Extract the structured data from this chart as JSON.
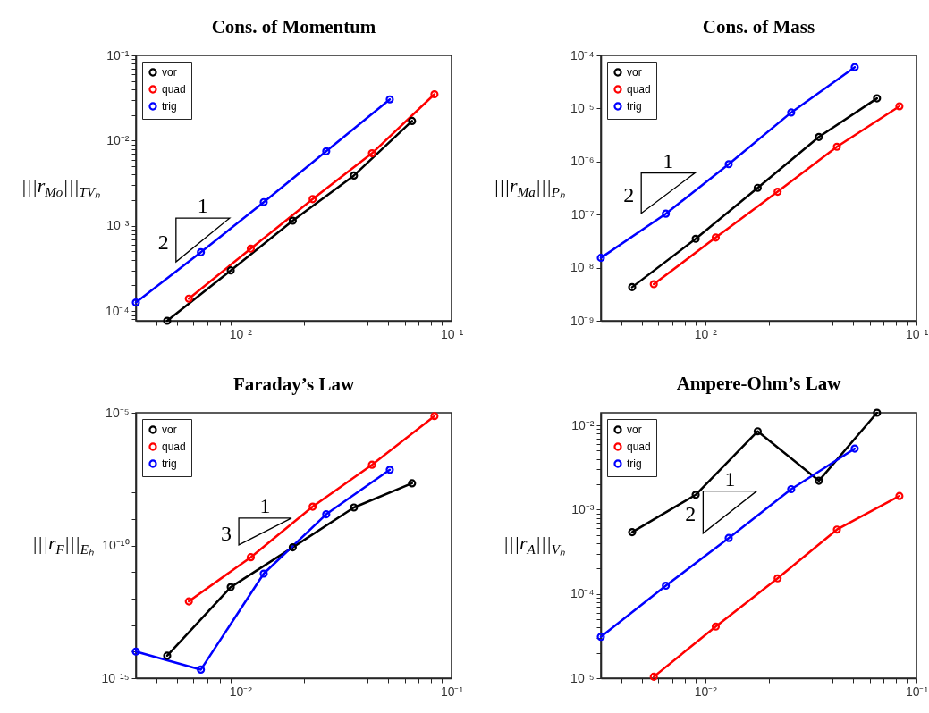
{
  "chart_data": [
    {
      "type": "line",
      "title": "Cons. of Momentum",
      "ylabel": "|||r$_{Mo}$|||$_{TVₕ}$",
      "log": "xy",
      "marker": "circle",
      "line_style": "solid",
      "legend": "top left",
      "annotations": [
        "1",
        "2"
      ],
      "xlim": [
        0.0032,
        0.1
      ],
      "xticks": [
        {
          "value": 0.004,
          "label": null
        },
        {
          "value": 0.005,
          "label": null
        },
        {
          "value": 0.006,
          "label": null
        },
        {
          "value": 0.007,
          "label": null
        },
        {
          "value": 0.008,
          "label": null
        },
        {
          "value": 0.009,
          "label": null
        },
        {
          "value": 0.01,
          "label": "10⁻²"
        },
        {
          "value": 0.02,
          "label": null
        },
        {
          "value": 0.03,
          "label": null
        },
        {
          "value": 0.04,
          "label": null
        },
        {
          "value": 0.05,
          "label": null
        },
        {
          "value": 0.06,
          "label": null
        },
        {
          "value": 0.07,
          "label": null
        },
        {
          "value": 0.08,
          "label": null
        },
        {
          "value": 0.09,
          "label": null
        },
        {
          "value": 0.1,
          "label": "10⁻¹"
        }
      ],
      "ylim": [
        7.7e-05,
        0.1
      ],
      "yticks": [
        {
          "value": 8e-05,
          "label": null
        },
        {
          "value": 9e-05,
          "label": null
        },
        {
          "value": 0.0001,
          "label": "10⁻⁴"
        },
        {
          "value": 0.0002,
          "label": null
        },
        {
          "value": 0.0003,
          "label": null
        },
        {
          "value": 0.0004,
          "label": null
        },
        {
          "value": 0.0005,
          "label": null
        },
        {
          "value": 0.0006,
          "label": null
        },
        {
          "value": 0.0007,
          "label": null
        },
        {
          "value": 0.0008,
          "label": null
        },
        {
          "value": 0.0009,
          "label": null
        },
        {
          "value": 0.001,
          "label": "10⁻³"
        },
        {
          "value": 0.002,
          "label": null
        },
        {
          "value": 0.003,
          "label": null
        },
        {
          "value": 0.004,
          "label": null
        },
        {
          "value": 0.005,
          "label": null
        },
        {
          "value": 0.006,
          "label": null
        },
        {
          "value": 0.007,
          "label": null
        },
        {
          "value": 0.008,
          "label": null
        },
        {
          "value": 0.009,
          "label": null
        },
        {
          "value": 0.01,
          "label": "10⁻²"
        },
        {
          "value": 0.02,
          "label": null
        },
        {
          "value": 0.03,
          "label": null
        },
        {
          "value": 0.04,
          "label": null
        },
        {
          "value": 0.05,
          "label": null
        },
        {
          "value": 0.06,
          "label": null
        },
        {
          "value": 0.07,
          "label": null
        },
        {
          "value": 0.08,
          "label": null
        },
        {
          "value": 0.09,
          "label": null
        },
        {
          "value": 0.1,
          "label": "10⁻¹"
        }
      ],
      "series": [
        {
          "name": "vor",
          "color": "#000000",
          "x": [
            0.0045,
            0.009,
            0.0177,
            0.0345,
            0.065
          ],
          "values": [
            7.7e-05,
            0.0003,
            0.00115,
            0.0039,
            0.017
          ]
        },
        {
          "name": "quad",
          "color": "#ff0000",
          "x": [
            0.0057,
            0.0112,
            0.022,
            0.042,
            0.083
          ],
          "values": [
            0.00014,
            0.00054,
            0.00206,
            0.0071,
            0.035
          ]
        },
        {
          "name": "trig",
          "color": "#0000ff",
          "x": [
            0.0032,
            0.0065,
            0.0129,
            0.0255,
            0.051
          ],
          "values": [
            0.000126,
            0.00049,
            0.0019,
            0.0075,
            0.0305
          ]
        }
      ]
    },
    {
      "type": "line",
      "title": "Cons. of Mass",
      "ylabel": "|||r$_{Ma}$|||$_{Pₕ}$",
      "log": "xy",
      "marker": "circle",
      "line_style": "solid",
      "legend": "top left",
      "annotations": [
        "1",
        "2"
      ],
      "xlim": [
        0.0032,
        0.1
      ],
      "xticks": [
        {
          "value": 0.004,
          "label": null
        },
        {
          "value": 0.005,
          "label": null
        },
        {
          "value": 0.006,
          "label": null
        },
        {
          "value": 0.007,
          "label": null
        },
        {
          "value": 0.008,
          "label": null
        },
        {
          "value": 0.009,
          "label": null
        },
        {
          "value": 0.01,
          "label": "10⁻²"
        },
        {
          "value": 0.02,
          "label": null
        },
        {
          "value": 0.03,
          "label": null
        },
        {
          "value": 0.04,
          "label": null
        },
        {
          "value": 0.05,
          "label": null
        },
        {
          "value": 0.06,
          "label": null
        },
        {
          "value": 0.07,
          "label": null
        },
        {
          "value": 0.08,
          "label": null
        },
        {
          "value": 0.09,
          "label": null
        },
        {
          "value": 0.1,
          "label": "10⁻¹"
        }
      ],
      "ylim": [
        1e-09,
        0.0001
      ],
      "yticks": [
        {
          "value": 1e-09,
          "label": "10⁻⁹"
        },
        {
          "value": 1e-08,
          "label": "10⁻⁸"
        },
        {
          "value": 1e-07,
          "label": "10⁻⁷"
        },
        {
          "value": 1e-06,
          "label": "10⁻⁶"
        },
        {
          "value": 1e-05,
          "label": "10⁻⁵"
        },
        {
          "value": 0.0001,
          "label": "10⁻⁴"
        }
      ],
      "series": [
        {
          "name": "vor",
          "color": "#000000",
          "x": [
            0.0045,
            0.009,
            0.0177,
            0.0345,
            0.065
          ],
          "values": [
            4.3e-09,
            3.5e-08,
            3.2e-07,
            2.9e-06,
            1.55e-05
          ]
        },
        {
          "name": "quad",
          "color": "#ff0000",
          "x": [
            0.0057,
            0.0112,
            0.022,
            0.042,
            0.083
          ],
          "values": [
            4.9e-09,
            3.7e-08,
            2.7e-07,
            1.9e-06,
            1.1e-05
          ]
        },
        {
          "name": "trig",
          "color": "#0000ff",
          "x": [
            0.0032,
            0.0065,
            0.0129,
            0.0255,
            0.051
          ],
          "values": [
            1.53e-08,
            1.04e-07,
            8.9e-07,
            8.4e-06,
            6e-05
          ]
        }
      ]
    },
    {
      "type": "line",
      "title": "Faraday’s Law",
      "ylabel": "|||r$_{F}$|||$_{Eₕ}$",
      "log": "xy",
      "marker": "circle",
      "line_style": "solid",
      "legend": "top left",
      "annotations": [
        "1",
        "3"
      ],
      "xlim": [
        0.0032,
        0.1
      ],
      "xticks": [
        {
          "value": 0.004,
          "label": null
        },
        {
          "value": 0.005,
          "label": null
        },
        {
          "value": 0.006,
          "label": null
        },
        {
          "value": 0.007,
          "label": null
        },
        {
          "value": 0.008,
          "label": null
        },
        {
          "value": 0.009,
          "label": null
        },
        {
          "value": 0.01,
          "label": "10⁻²"
        },
        {
          "value": 0.02,
          "label": null
        },
        {
          "value": 0.03,
          "label": null
        },
        {
          "value": 0.04,
          "label": null
        },
        {
          "value": 0.05,
          "label": null
        },
        {
          "value": 0.06,
          "label": null
        },
        {
          "value": 0.07,
          "label": null
        },
        {
          "value": 0.08,
          "label": null
        },
        {
          "value": 0.09,
          "label": null
        },
        {
          "value": 0.1,
          "label": "10⁻¹"
        }
      ],
      "ylim": [
        1e-15,
        1e-05
      ],
      "yticks": [
        {
          "value": 1e-15,
          "label": "10⁻¹⁵"
        },
        {
          "value": 1e-14,
          "label": null
        },
        {
          "value": 1e-13,
          "label": null
        },
        {
          "value": 1e-12,
          "label": null
        },
        {
          "value": 1e-11,
          "label": null
        },
        {
          "value": 1e-10,
          "label": "10⁻¹⁰"
        },
        {
          "value": 1e-09,
          "label": null
        },
        {
          "value": 1e-08,
          "label": null
        },
        {
          "value": 1e-07,
          "label": null
        },
        {
          "value": 1e-06,
          "label": null
        },
        {
          "value": 1e-05,
          "label": "10⁻⁵"
        }
      ],
      "series": [
        {
          "name": "vor",
          "color": "#000000",
          "x": [
            0.0045,
            0.009,
            0.0177,
            0.0345,
            0.065
          ],
          "values": [
            7e-15,
            2.7e-12,
            8.5e-11,
            2.7e-09,
            2.2e-08
          ]
        },
        {
          "name": "quad",
          "color": "#ff0000",
          "x": [
            0.0057,
            0.0112,
            0.022,
            0.042,
            0.083
          ],
          "values": [
            7.8e-13,
            3.6e-11,
            2.9e-09,
            1.1e-07,
            7.5e-06
          ]
        },
        {
          "name": "trig",
          "color": "#0000ff",
          "x": [
            0.0032,
            0.0065,
            0.0129,
            0.0255,
            0.051
          ],
          "values": [
            1e-14,
            2.1e-15,
            8.7e-12,
            1.5e-09,
            7.1e-08
          ]
        }
      ]
    },
    {
      "type": "line",
      "title": "Ampere-Ohm’s Law",
      "ylabel": "|||r$_{A}$|||$_{Vₕ}$",
      "log": "xy",
      "marker": "circle",
      "line_style": "solid",
      "legend": "top left",
      "annotations": [
        "1",
        "2"
      ],
      "xlim": [
        0.0032,
        0.1
      ],
      "xticks": [
        {
          "value": 0.004,
          "label": null
        },
        {
          "value": 0.005,
          "label": null
        },
        {
          "value": 0.006,
          "label": null
        },
        {
          "value": 0.007,
          "label": null
        },
        {
          "value": 0.008,
          "label": null
        },
        {
          "value": 0.009,
          "label": null
        },
        {
          "value": 0.01,
          "label": "10⁻²"
        },
        {
          "value": 0.02,
          "label": null
        },
        {
          "value": 0.03,
          "label": null
        },
        {
          "value": 0.04,
          "label": null
        },
        {
          "value": 0.05,
          "label": null
        },
        {
          "value": 0.06,
          "label": null
        },
        {
          "value": 0.07,
          "label": null
        },
        {
          "value": 0.08,
          "label": null
        },
        {
          "value": 0.09,
          "label": null
        },
        {
          "value": 0.1,
          "label": "10⁻¹"
        }
      ],
      "ylim": [
        1e-05,
        0.0141
      ],
      "yticks": [
        {
          "value": 1e-05,
          "label": "10⁻⁵"
        },
        {
          "value": 2e-05,
          "label": null
        },
        {
          "value": 3e-05,
          "label": null
        },
        {
          "value": 4e-05,
          "label": null
        },
        {
          "value": 5e-05,
          "label": null
        },
        {
          "value": 6e-05,
          "label": null
        },
        {
          "value": 7e-05,
          "label": null
        },
        {
          "value": 8e-05,
          "label": null
        },
        {
          "value": 9e-05,
          "label": null
        },
        {
          "value": 0.0001,
          "label": "10⁻⁴"
        },
        {
          "value": 0.0002,
          "label": null
        },
        {
          "value": 0.0003,
          "label": null
        },
        {
          "value": 0.0004,
          "label": null
        },
        {
          "value": 0.0005,
          "label": null
        },
        {
          "value": 0.0006,
          "label": null
        },
        {
          "value": 0.0007,
          "label": null
        },
        {
          "value": 0.0008,
          "label": null
        },
        {
          "value": 0.0009,
          "label": null
        },
        {
          "value": 0.001,
          "label": "10⁻³"
        },
        {
          "value": 0.002,
          "label": null
        },
        {
          "value": 0.003,
          "label": null
        },
        {
          "value": 0.004,
          "label": null
        },
        {
          "value": 0.005,
          "label": null
        },
        {
          "value": 0.006,
          "label": null
        },
        {
          "value": 0.007,
          "label": null
        },
        {
          "value": 0.008,
          "label": null
        },
        {
          "value": 0.009,
          "label": null
        },
        {
          "value": 0.01,
          "label": "10⁻²"
        }
      ],
      "series": [
        {
          "name": "vor",
          "color": "#000000",
          "x": [
            0.0045,
            0.009,
            0.0177,
            0.0345,
            0.065
          ],
          "values": [
            0.00054,
            0.0015,
            0.0085,
            0.0022,
            0.0141
          ]
        },
        {
          "name": "quad",
          "color": "#ff0000",
          "x": [
            0.0057,
            0.0112,
            0.022,
            0.042,
            0.083
          ],
          "values": [
            1.04e-05,
            4.1e-05,
            0.000153,
            0.00058,
            0.00145
          ]
        },
        {
          "name": "trig",
          "color": "#0000ff",
          "x": [
            0.0032,
            0.0065,
            0.0129,
            0.0255,
            0.051
          ],
          "values": [
            3.1e-05,
            0.000125,
            0.00046,
            0.00175,
            0.0053
          ]
        }
      ]
    }
  ]
}
